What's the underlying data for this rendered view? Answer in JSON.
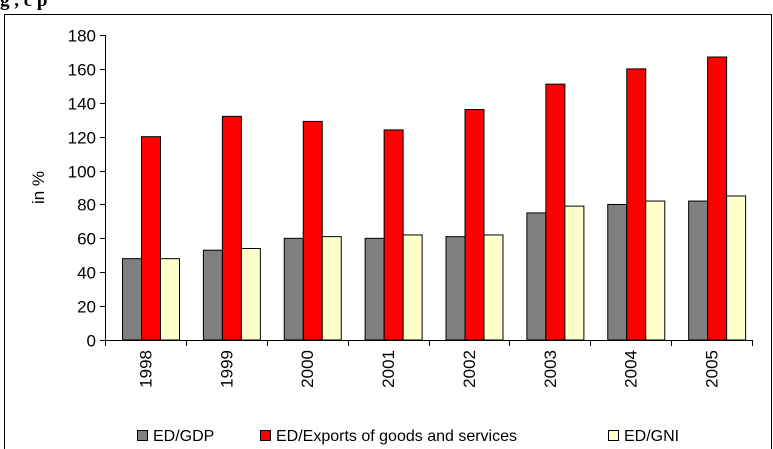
{
  "page": {
    "title_fragment": "g                                          , c          p"
  },
  "chart_data": {
    "type": "bar",
    "title": "",
    "xlabel": "",
    "ylabel": "in %",
    "ylim": [
      0,
      180
    ],
    "yticks": [
      0,
      20,
      40,
      60,
      80,
      100,
      120,
      140,
      160,
      180
    ],
    "categories": [
      "1998",
      "1999",
      "2000",
      "2001",
      "2002",
      "2003",
      "2004",
      "2005"
    ],
    "series": [
      {
        "name": "ED/GDP",
        "color": "#808080",
        "values": [
          48,
          53,
          60,
          60,
          61,
          75,
          80,
          82
        ]
      },
      {
        "name": "ED/Exports of goods and services",
        "color": "#ff0000",
        "values": [
          120,
          132,
          129,
          124,
          136,
          151,
          160,
          167
        ]
      },
      {
        "name": "ED/GNI",
        "color": "#ffffcc",
        "values": [
          48,
          54,
          61,
          62,
          62,
          79,
          82,
          85
        ]
      }
    ],
    "grid": false,
    "legend_position": "bottom"
  }
}
